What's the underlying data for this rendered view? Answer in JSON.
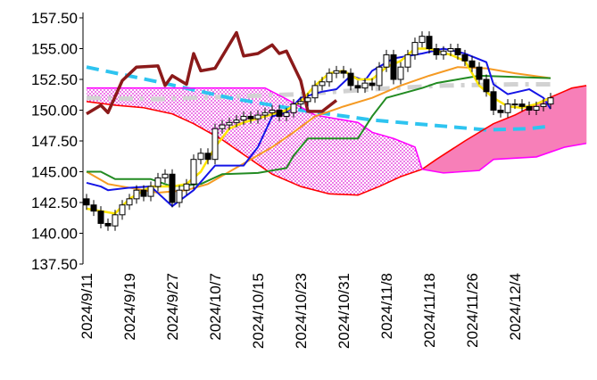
{
  "chart_data": {
    "type": "candlestick",
    "categories": [
      "2024/9/11",
      null,
      null,
      null,
      null,
      null,
      "2024/9/19",
      null,
      null,
      null,
      null,
      null,
      "2024/9/27",
      null,
      null,
      null,
      null,
      null,
      "2024/10/7",
      null,
      null,
      null,
      null,
      null,
      "2024/10/15",
      null,
      null,
      null,
      null,
      null,
      "2024/10/23",
      null,
      null,
      null,
      null,
      null,
      "2024/10/31",
      null,
      null,
      null,
      null,
      null,
      "2024/11/8",
      null,
      null,
      null,
      null,
      null,
      "2024/11/18",
      null,
      null,
      null,
      null,
      null,
      "2024/11/26",
      null,
      null,
      null,
      null,
      null,
      "2024/12/4",
      null,
      null,
      null,
      null,
      null,
      null,
      null,
      null,
      null,
      null
    ],
    "ylim": [
      137.5,
      157.5
    ],
    "yticks": [
      {
        "value": 137.5,
        "label": "137.50"
      },
      {
        "value": 140,
        "label": "140.00"
      },
      {
        "value": 142.5,
        "label": "142.50"
      },
      {
        "value": 145,
        "label": "145.00"
      },
      {
        "value": 147.5,
        "label": "147.50"
      },
      {
        "value": 150,
        "label": "150.00"
      },
      {
        "value": 152.5,
        "label": "152.50"
      },
      {
        "value": 155,
        "label": "155.00"
      },
      {
        "value": 157.5,
        "label": "157.50"
      }
    ],
    "candles": {
      "up_color": "#ffffff",
      "down_color": "#000000",
      "open": [
        142.8,
        142.3,
        141.8,
        140.8,
        140.6,
        141.5,
        142.3,
        142.8,
        143.5,
        143.0,
        143.8,
        144.5,
        144.8,
        142.5,
        143.5,
        144.0,
        146.0,
        146.5,
        146.0,
        148.5,
        148.8,
        149.0,
        149.2,
        149.5,
        149.3,
        149.6,
        149.8,
        150.0,
        149.5,
        149.8,
        150.5,
        150.7,
        151.0,
        152.0,
        152.3,
        153.0,
        153.2,
        153.0,
        152.0,
        151.8,
        152.2,
        152.0,
        153.5,
        154.5,
        152.5,
        153.5,
        154.5,
        155.5,
        156.0,
        155.0,
        154.5,
        154.8,
        155.0,
        154.5,
        154.0,
        153.5,
        152.5,
        151.5,
        150.0,
        149.8,
        150.5,
        150.5,
        150.3,
        150.0,
        150.3,
        150.5
      ],
      "high": [
        143.2,
        142.7,
        142.2,
        141.2,
        141.9,
        142.7,
        143.2,
        143.9,
        143.9,
        144.2,
        144.9,
        145.2,
        145.2,
        143.9,
        144.4,
        146.4,
        146.9,
        146.9,
        148.9,
        149.2,
        149.4,
        149.6,
        149.9,
        149.9,
        150.0,
        150.2,
        150.4,
        150.4,
        150.2,
        150.9,
        151.1,
        151.4,
        152.4,
        152.7,
        153.4,
        153.6,
        153.6,
        153.4,
        152.4,
        152.6,
        152.6,
        153.9,
        154.9,
        154.9,
        153.9,
        154.9,
        155.9,
        156.4,
        156.4,
        155.4,
        155.2,
        155.4,
        155.4,
        154.9,
        154.4,
        153.9,
        152.9,
        151.9,
        150.4,
        150.9,
        150.9,
        150.9,
        150.7,
        150.7,
        150.9,
        151.4
      ],
      "low": [
        141.9,
        141.4,
        140.4,
        140.2,
        140.2,
        141.1,
        141.9,
        142.4,
        142.6,
        142.6,
        143.4,
        144.1,
        142.1,
        142.1,
        143.1,
        143.6,
        145.6,
        145.6,
        145.6,
        148.1,
        148.4,
        148.6,
        148.8,
        148.9,
        148.9,
        149.2,
        149.4,
        149.1,
        149.1,
        149.4,
        150.1,
        150.3,
        150.6,
        151.6,
        151.9,
        152.6,
        152.6,
        151.6,
        151.4,
        151.4,
        151.6,
        151.6,
        153.1,
        152.1,
        152.1,
        153.1,
        154.1,
        155.1,
        154.6,
        154.1,
        154.1,
        154.4,
        154.1,
        153.6,
        153.1,
        152.1,
        151.1,
        149.6,
        149.4,
        149.4,
        150.1,
        149.9,
        149.6,
        149.6,
        149.9,
        150.1
      ],
      "close": [
        142.3,
        141.8,
        140.8,
        140.6,
        141.5,
        142.3,
        142.8,
        143.5,
        143.0,
        143.8,
        144.5,
        144.8,
        142.5,
        143.5,
        144.0,
        146.0,
        146.5,
        146.0,
        148.5,
        148.8,
        149.0,
        149.2,
        149.5,
        149.3,
        149.6,
        149.8,
        150.0,
        149.5,
        149.8,
        150.5,
        150.7,
        151.0,
        152.0,
        152.3,
        153.0,
        153.2,
        153.0,
        152.0,
        151.8,
        152.2,
        152.0,
        153.5,
        154.5,
        152.5,
        153.5,
        154.5,
        155.5,
        156.0,
        155.0,
        154.5,
        154.8,
        155.0,
        154.5,
        154.0,
        153.5,
        152.5,
        151.5,
        150.0,
        149.8,
        150.5,
        150.5,
        150.3,
        150.0,
        150.3,
        150.5,
        151.0
      ]
    },
    "cloud_colors": {
      "a_above": "#f77fb8",
      "b_above": "#e020d8"
    },
    "series": [
      {
        "color": "#d2d2d2",
        "line_style": "dashdot",
        "width": 5,
        "x": [
          0,
          10,
          20,
          30,
          40,
          50,
          60,
          65
        ],
        "values": [
          151.0,
          150.9,
          151.1,
          151.3,
          151.7,
          152.0,
          152.1,
          152.1
        ]
      },
      {
        "color": "#2ec4f0",
        "line_style": "dashed",
        "width": 4,
        "x": [
          0,
          10,
          20,
          30,
          40,
          50,
          56,
          62,
          65
        ],
        "values": [
          153.5,
          152.3,
          151.0,
          150.0,
          149.2,
          148.7,
          148.4,
          148.5,
          148.7
        ]
      },
      {
        "color": "#ff0000",
        "line_style": "solid",
        "width": 1.6,
        "cloud": "a",
        "x": [
          0,
          4,
          8,
          12,
          15,
          19,
          23,
          26,
          30,
          34,
          38,
          41,
          44,
          47,
          49,
          53,
          57,
          60,
          64,
          68,
          70
        ],
        "values": [
          150.7,
          150.4,
          150.2,
          149.7,
          148.9,
          147.6,
          146.0,
          144.8,
          143.8,
          143.2,
          143.1,
          143.8,
          144.6,
          145.2,
          146.0,
          147.5,
          148.9,
          149.6,
          150.8,
          151.8,
          152.0
        ]
      },
      {
        "color": "#ff00ff",
        "line_style": "solid",
        "width": 1.6,
        "cloud": "b",
        "x": [
          0,
          25,
          28,
          32,
          38,
          40,
          43,
          46,
          47,
          50,
          55,
          57,
          63,
          67,
          70
        ],
        "values": [
          151.8,
          151.8,
          150.9,
          149.6,
          149.0,
          148.2,
          147.7,
          147.0,
          145.2,
          144.9,
          145.1,
          146.0,
          146.2,
          147.0,
          147.3
        ]
      },
      {
        "color": "#f59a23",
        "line_style": "solid",
        "width": 2,
        "x": [
          0,
          3,
          6,
          10,
          14,
          17,
          20,
          23,
          26,
          29,
          32,
          36,
          40,
          44,
          48,
          52,
          56,
          60,
          65
        ],
        "values": [
          145.0,
          144.0,
          143.7,
          143.3,
          143.5,
          144.0,
          145.0,
          146.0,
          147.0,
          148.2,
          149.5,
          150.3,
          151.0,
          152.0,
          152.8,
          153.5,
          153.4,
          153.0,
          152.6
        ]
      },
      {
        "color": "#228b22",
        "line_style": "solid",
        "width": 2,
        "x": [
          0,
          2,
          4,
          9,
          12,
          16,
          19,
          24,
          28,
          29,
          31,
          38,
          40,
          42,
          47,
          49,
          53,
          55,
          65
        ],
        "values": [
          145.0,
          145.0,
          144.4,
          144.4,
          143.8,
          144.0,
          144.8,
          144.9,
          145.3,
          146.3,
          147.7,
          147.7,
          149.5,
          151.0,
          151.8,
          152.2,
          152.6,
          152.8,
          152.6
        ]
      },
      {
        "color": "#1414e6",
        "line_style": "solid",
        "width": 2,
        "x": [
          0,
          2,
          3,
          6,
          9,
          12,
          15,
          18,
          22,
          24,
          26,
          28,
          30,
          33,
          35,
          37,
          39,
          40,
          43,
          47,
          50,
          53,
          56,
          57,
          59,
          62,
          64,
          65
        ],
        "values": [
          144.1,
          143.8,
          143.5,
          143.7,
          143.8,
          142.2,
          143.5,
          145.5,
          145.5,
          147.0,
          149.5,
          149.8,
          151.0,
          151.5,
          151.7,
          152.8,
          152.4,
          153.2,
          154.2,
          154.6,
          155.0,
          154.6,
          153.9,
          152.1,
          151.3,
          151.7,
          151.0,
          150.1
        ]
      },
      {
        "color": "#ffe600",
        "line_style": "solid",
        "width": 2.5,
        "x": [
          0,
          2,
          4,
          6,
          9,
          12,
          14,
          16,
          18,
          20,
          22,
          25,
          28,
          30,
          32,
          34,
          36,
          38,
          40,
          42,
          44,
          46,
          48,
          51,
          53,
          55,
          57,
          59,
          61,
          63,
          65
        ],
        "values": [
          142.0,
          141.8,
          141.6,
          142.8,
          143.8,
          143.8,
          144.0,
          145.0,
          147.0,
          148.5,
          149.0,
          149.5,
          150.0,
          150.7,
          152.0,
          153.0,
          153.2,
          152.5,
          152.5,
          153.5,
          154.0,
          155.0,
          155.0,
          154.5,
          154.0,
          152.0,
          151.0,
          150.3,
          150.2,
          150.5,
          151.0
        ]
      },
      {
        "color": "#8b1a1a",
        "line_style": "solid",
        "width": 3.5,
        "x": [
          0,
          2,
          3,
          5,
          7,
          10,
          11,
          12,
          14,
          15,
          16,
          18,
          21,
          22,
          24,
          26,
          27,
          28,
          30,
          31,
          33,
          35
        ],
        "values": [
          149.7,
          150.4,
          149.8,
          152.4,
          153.5,
          153.6,
          152.0,
          152.8,
          152.1,
          154.6,
          153.2,
          153.4,
          156.3,
          154.4,
          154.6,
          155.3,
          154.6,
          154.8,
          152.4,
          149.9,
          149.9,
          150.8
        ]
      }
    ]
  }
}
